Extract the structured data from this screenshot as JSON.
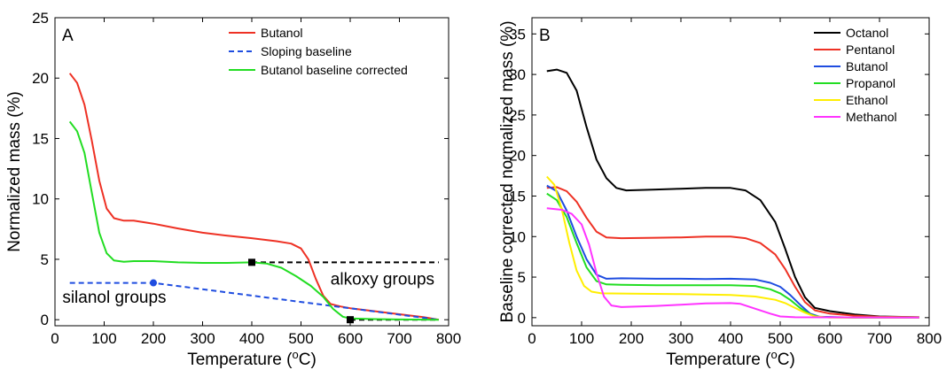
{
  "chart_data": [
    {
      "type": "line",
      "panel_label": "A",
      "xlabel": "Temperature (",
      "xlabel_sup": "o",
      "xlabel_end": "C)",
      "ylabel": "Normalized mass (%)",
      "xlim": [
        0,
        800
      ],
      "ylim": [
        -0.5,
        25
      ],
      "xticks": [
        0,
        100,
        200,
        300,
        400,
        500,
        600,
        700,
        800
      ],
      "yticks": [
        0,
        5,
        10,
        15,
        20,
        25
      ],
      "legend_position": "top-right",
      "series": [
        {
          "name": "Butanol",
          "color": "#ee3124",
          "dash": "solid",
          "points": [
            [
              30,
              20.4
            ],
            [
              45,
              19.6
            ],
            [
              60,
              17.8
            ],
            [
              75,
              14.8
            ],
            [
              90,
              11.5
            ],
            [
              105,
              9.2
            ],
            [
              120,
              8.4
            ],
            [
              140,
              8.2
            ],
            [
              160,
              8.2
            ],
            [
              200,
              7.95
            ],
            [
              250,
              7.55
            ],
            [
              300,
              7.2
            ],
            [
              350,
              6.95
            ],
            [
              400,
              6.75
            ],
            [
              450,
              6.5
            ],
            [
              480,
              6.3
            ],
            [
              500,
              5.9
            ],
            [
              515,
              5.0
            ],
            [
              530,
              3.4
            ],
            [
              545,
              2.0
            ],
            [
              560,
              1.3
            ],
            [
              580,
              1.1
            ],
            [
              600,
              0.95
            ],
            [
              650,
              0.7
            ],
            [
              700,
              0.45
            ],
            [
              750,
              0.2
            ],
            [
              780,
              0.0
            ]
          ]
        },
        {
          "name": "Sloping baseline",
          "color": "#1f4de0",
          "dash": "6,4",
          "points": [
            [
              30,
              3.05
            ],
            [
              200,
              3.05
            ],
            [
              780,
              0.0
            ]
          ]
        },
        {
          "name": "Butanol baseline corrected",
          "color": "#22dd22",
          "dash": "solid",
          "points": [
            [
              30,
              16.4
            ],
            [
              45,
              15.6
            ],
            [
              60,
              13.8
            ],
            [
              75,
              10.5
            ],
            [
              90,
              7.2
            ],
            [
              105,
              5.5
            ],
            [
              120,
              4.9
            ],
            [
              140,
              4.8
            ],
            [
              160,
              4.85
            ],
            [
              200,
              4.85
            ],
            [
              250,
              4.75
            ],
            [
              300,
              4.7
            ],
            [
              350,
              4.7
            ],
            [
              400,
              4.75
            ],
            [
              430,
              4.65
            ],
            [
              460,
              4.3
            ],
            [
              490,
              3.6
            ],
            [
              520,
              2.8
            ],
            [
              545,
              1.9
            ],
            [
              565,
              0.9
            ],
            [
              585,
              0.25
            ],
            [
              600,
              0.1
            ],
            [
              650,
              0.05
            ],
            [
              700,
              0.02
            ],
            [
              780,
              0.0
            ]
          ]
        }
      ],
      "reference_lines": [
        {
          "color": "#000000",
          "dash": "6,4",
          "points": [
            [
              400,
              4.75
            ],
            [
              780,
              4.75
            ]
          ]
        },
        {
          "color": "#000000",
          "dash": "6,4",
          "points": [
            [
              600,
              0.0
            ],
            [
              780,
              0.0
            ]
          ]
        }
      ],
      "markers": [
        {
          "x": 200,
          "y": 3.05,
          "shape": "circle",
          "color": "#1f4de0"
        },
        {
          "x": 400,
          "y": 4.75,
          "shape": "square",
          "color": "#000000"
        },
        {
          "x": 600,
          "y": 0.0,
          "shape": "square",
          "color": "#000000"
        }
      ],
      "annotations": [
        {
          "text": "silanol groups",
          "x": 15,
          "y": 1.4
        },
        {
          "text": "alkoxy groups",
          "x": 560,
          "y": 2.9
        }
      ]
    },
    {
      "type": "line",
      "panel_label": "B",
      "xlabel": "Temperature (",
      "xlabel_sup": "o",
      "xlabel_end": "C)",
      "ylabel": "Baseline corrected normalized mass (%)",
      "xlim": [
        0,
        800
      ],
      "ylim": [
        -1,
        37
      ],
      "xticks": [
        0,
        100,
        200,
        300,
        400,
        500,
        600,
        700,
        800
      ],
      "yticks": [
        0,
        5,
        10,
        15,
        20,
        25,
        30,
        35
      ],
      "legend_position": "top-right",
      "series": [
        {
          "name": "Octanol",
          "color": "#000000",
          "points": [
            [
              30,
              30.4
            ],
            [
              50,
              30.6
            ],
            [
              70,
              30.2
            ],
            [
              90,
              28.0
            ],
            [
              110,
              23.5
            ],
            [
              130,
              19.5
            ],
            [
              150,
              17.2
            ],
            [
              170,
              16.0
            ],
            [
              190,
              15.7
            ],
            [
              250,
              15.8
            ],
            [
              300,
              15.9
            ],
            [
              350,
              16.0
            ],
            [
              400,
              16.0
            ],
            [
              430,
              15.7
            ],
            [
              460,
              14.5
            ],
            [
              490,
              11.8
            ],
            [
              510,
              8.5
            ],
            [
              530,
              5.0
            ],
            [
              550,
              2.5
            ],
            [
              570,
              1.2
            ],
            [
              600,
              0.8
            ],
            [
              650,
              0.4
            ],
            [
              700,
              0.15
            ],
            [
              780,
              0.05
            ]
          ]
        },
        {
          "name": "Pentanol",
          "color": "#ee3124",
          "points": [
            [
              30,
              16.0
            ],
            [
              50,
              16.1
            ],
            [
              70,
              15.6
            ],
            [
              90,
              14.3
            ],
            [
              110,
              12.3
            ],
            [
              130,
              10.6
            ],
            [
              150,
              9.9
            ],
            [
              180,
              9.8
            ],
            [
              250,
              9.85
            ],
            [
              300,
              9.9
            ],
            [
              350,
              10.0
            ],
            [
              400,
              10.0
            ],
            [
              430,
              9.8
            ],
            [
              460,
              9.2
            ],
            [
              490,
              7.8
            ],
            [
              510,
              6.0
            ],
            [
              530,
              3.8
            ],
            [
              550,
              1.9
            ],
            [
              570,
              0.9
            ],
            [
              600,
              0.5
            ],
            [
              650,
              0.25
            ],
            [
              700,
              0.1
            ],
            [
              780,
              0.05
            ]
          ]
        },
        {
          "name": "Butanol",
          "color": "#1f4de0",
          "points": [
            [
              30,
              16.3
            ],
            [
              50,
              15.6
            ],
            [
              70,
              13.2
            ],
            [
              90,
              10.0
            ],
            [
              110,
              7.2
            ],
            [
              130,
              5.3
            ],
            [
              150,
              4.8
            ],
            [
              180,
              4.85
            ],
            [
              250,
              4.8
            ],
            [
              300,
              4.8
            ],
            [
              350,
              4.75
            ],
            [
              400,
              4.8
            ],
            [
              450,
              4.7
            ],
            [
              480,
              4.3
            ],
            [
              500,
              3.8
            ],
            [
              520,
              2.8
            ],
            [
              540,
              1.6
            ],
            [
              560,
              0.5
            ],
            [
              580,
              0.1
            ],
            [
              650,
              0.0
            ],
            [
              780,
              0.0
            ]
          ]
        },
        {
          "name": "Propanol",
          "color": "#22dd22",
          "points": [
            [
              30,
              15.3
            ],
            [
              50,
              14.5
            ],
            [
              70,
              12.4
            ],
            [
              90,
              9.2
            ],
            [
              110,
              6.2
            ],
            [
              130,
              4.5
            ],
            [
              150,
              4.1
            ],
            [
              180,
              4.05
            ],
            [
              250,
              4.0
            ],
            [
              300,
              4.0
            ],
            [
              350,
              4.0
            ],
            [
              400,
              4.0
            ],
            [
              450,
              3.9
            ],
            [
              480,
              3.5
            ],
            [
              500,
              3.0
            ],
            [
              520,
              2.2
            ],
            [
              540,
              1.2
            ],
            [
              560,
              0.4
            ],
            [
              580,
              0.05
            ],
            [
              650,
              0.0
            ],
            [
              780,
              0.0
            ]
          ]
        },
        {
          "name": "Ethanol",
          "color": "#ffee00",
          "points": [
            [
              30,
              17.4
            ],
            [
              45,
              16.4
            ],
            [
              60,
              13.4
            ],
            [
              75,
              9.3
            ],
            [
              90,
              5.8
            ],
            [
              105,
              3.9
            ],
            [
              120,
              3.2
            ],
            [
              140,
              3.0
            ],
            [
              200,
              2.95
            ],
            [
              300,
              2.9
            ],
            [
              400,
              2.8
            ],
            [
              450,
              2.6
            ],
            [
              490,
              2.2
            ],
            [
              510,
              1.8
            ],
            [
              530,
              1.2
            ],
            [
              550,
              0.6
            ],
            [
              570,
              0.15
            ],
            [
              600,
              0.0
            ],
            [
              780,
              0.0
            ]
          ]
        },
        {
          "name": "Methanol",
          "color": "#ff33ff",
          "points": [
            [
              30,
              13.5
            ],
            [
              60,
              13.3
            ],
            [
              80,
              12.8
            ],
            [
              100,
              11.5
            ],
            [
              115,
              9.0
            ],
            [
              130,
              5.5
            ],
            [
              145,
              2.6
            ],
            [
              160,
              1.5
            ],
            [
              180,
              1.3
            ],
            [
              250,
              1.45
            ],
            [
              300,
              1.6
            ],
            [
              350,
              1.75
            ],
            [
              400,
              1.8
            ],
            [
              420,
              1.7
            ],
            [
              450,
              1.1
            ],
            [
              480,
              0.5
            ],
            [
              500,
              0.15
            ],
            [
              530,
              0.05
            ],
            [
              780,
              0.0
            ]
          ]
        }
      ]
    }
  ]
}
